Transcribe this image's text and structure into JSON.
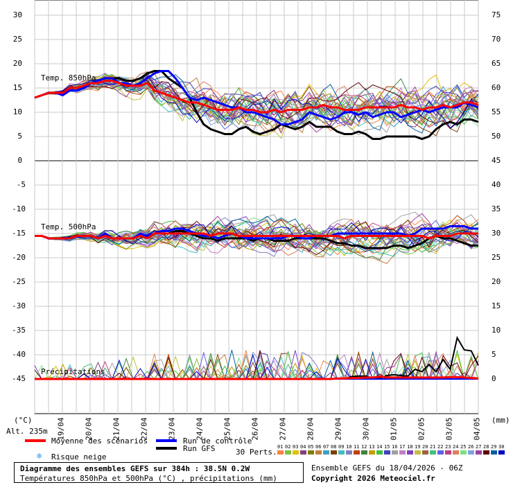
{
  "chart_data": {
    "type": "line",
    "title": "Diagramme des ensembles GEFS sur 384h : 38.5N 0.2W",
    "subtitle": "Températures 850hPa et 500hPa (°C) , précipitations (mm)",
    "source_info": "Ensemble GEFS du 18/04/2026 - 06Z",
    "copyright": "Copyright 2026 Meteociel.fr",
    "altitude": "Alt. 235m",
    "left_unit": "(°C)",
    "right_unit": "(mm)",
    "x_ticks": [
      "19/04",
      "20/04",
      "21/04",
      "22/04",
      "23/04",
      "24/04",
      "25/04",
      "26/04",
      "27/04",
      "28/04",
      "29/04",
      "30/04",
      "01/05",
      "02/05",
      "03/05",
      "04/05"
    ],
    "panels": [
      {
        "name": "Temp. 850hPa",
        "left_ticks": [
          "30",
          "25",
          "20",
          "15",
          "10",
          "5",
          "0"
        ],
        "right_ticks": [
          "75",
          "70",
          "65",
          "60",
          "55",
          "50",
          "45"
        ],
        "ylim": [
          0,
          30
        ]
      },
      {
        "name": "Temp. 500hPa",
        "left_ticks": [
          "-5",
          "-10",
          "-15",
          "-20",
          "-25",
          "-30",
          "-35",
          "-40",
          "-45"
        ],
        "right_ticks": [
          "40",
          "35",
          "30",
          "25",
          "20",
          "15",
          "10",
          "5",
          "0"
        ],
        "ylim": [
          -45,
          0
        ]
      },
      {
        "name": "Précipitations",
        "ylim": [
          0,
          25
        ]
      }
    ],
    "series": [
      {
        "name": "Moyenne des scénarios",
        "color": "#ff0000",
        "t850": [
          13,
          13.5,
          14,
          14,
          14,
          15,
          15,
          15.5,
          16,
          16,
          16.5,
          16.5,
          16,
          15.5,
          15.5,
          15.5,
          16,
          14.5,
          14,
          13.5,
          13,
          12.5,
          12,
          12,
          11.5,
          11,
          10.5,
          10.5,
          10.5,
          11,
          10.5,
          10.5,
          10,
          10,
          10.5,
          10,
          10.5,
          10.5,
          10.5,
          11,
          11,
          11.5,
          11,
          11,
          10.5,
          10.5,
          10.5,
          11,
          11,
          11,
          11,
          11,
          11.5,
          11,
          11,
          10.5,
          11,
          11,
          11.5,
          11,
          11.5,
          12,
          12,
          11.5
        ],
        "t500": [
          -15.5,
          -15.5,
          -16,
          -16,
          -16,
          -16,
          -15.5,
          -15.5,
          -15.5,
          -16,
          -15.5,
          -16,
          -16,
          -16,
          -16,
          -15.5,
          -16,
          -15,
          -15,
          -15,
          -15,
          -15,
          -15,
          -15,
          -15,
          -15.5,
          -15,
          -15,
          -15,
          -15.5,
          -15.5,
          -15.5,
          -15.5,
          -15.5,
          -15.5,
          -15.5,
          -15.5,
          -15.5,
          -15.5,
          -15.5,
          -15.5,
          -15.5,
          -15.5,
          -15.5,
          -16,
          -15.5,
          -15.5,
          -15.5,
          -15.5,
          -15.5,
          -15.5,
          -15.5,
          -15.5,
          -15.5,
          -15.5,
          -15.5,
          -16,
          -15.5,
          -15.5,
          -15.5,
          -15,
          -15,
          -15,
          -15
        ],
        "prcp": [
          0,
          0,
          0,
          0,
          0,
          0,
          0,
          0,
          0,
          0,
          0,
          0,
          0,
          0,
          0,
          0,
          0,
          0,
          0,
          0,
          0,
          0,
          0,
          0,
          0,
          0,
          0,
          0,
          0,
          0,
          0,
          0,
          0,
          0,
          0,
          0,
          0,
          0,
          0,
          0,
          0,
          0,
          0,
          0.1,
          0.1,
          0.2,
          0.2,
          0.3,
          0.3,
          0.5,
          0.3,
          0.3,
          0.3,
          0.3,
          0.3,
          0.3,
          0.3,
          0.3,
          0.3,
          0.4,
          0.4,
          0.3,
          0.2,
          0.1
        ]
      },
      {
        "name": "Run de contrôle",
        "color": "#0000ff",
        "t850": [
          13,
          13.5,
          14,
          14,
          13.5,
          14.5,
          14.5,
          15,
          16,
          16.5,
          17,
          17,
          16,
          16,
          15.5,
          16,
          17,
          18,
          18.5,
          18.5,
          17,
          15,
          13,
          12.5,
          13,
          12.5,
          12,
          11.5,
          11,
          11,
          10,
          10,
          9.5,
          9,
          8.5,
          7.5,
          7.5,
          8,
          8.5,
          10,
          9.5,
          9,
          8.5,
          9,
          10,
          10,
          9.5,
          10,
          9,
          9.5,
          10,
          10,
          9,
          9.5,
          10,
          10.5,
          10,
          10.5,
          11,
          11,
          11,
          12,
          11.5,
          11
        ],
        "t500": [
          -15.5,
          -15.5,
          -16,
          -16,
          -16,
          -16,
          -15.5,
          -15.5,
          -15.5,
          -16,
          -15,
          -16,
          -16,
          -16,
          -16,
          -15,
          -15.5,
          -15,
          -14.5,
          -14.5,
          -14,
          -14,
          -14.5,
          -15,
          -15.5,
          -15.5,
          -16,
          -15.5,
          -15,
          -15.5,
          -16,
          -16,
          -16,
          -16,
          -16,
          -16,
          -15.5,
          -15.5,
          -16,
          -16,
          -15.5,
          -15.5,
          -15.5,
          -15,
          -15,
          -15,
          -15,
          -15,
          -15,
          -15,
          -15,
          -15,
          -15,
          -15.5,
          -15,
          -14,
          -14,
          -14,
          -14,
          -13.5,
          -13.5,
          -13.5,
          -14,
          -14
        ],
        "prcp": [
          0,
          0,
          0,
          0,
          0,
          0,
          0,
          0,
          0,
          0,
          0,
          0,
          0,
          0,
          0,
          0,
          0,
          0,
          0,
          0,
          0,
          0,
          0,
          0,
          0,
          0,
          0,
          0,
          0,
          0,
          0,
          0,
          0,
          0,
          0,
          0,
          0,
          0,
          0,
          0,
          0,
          0,
          0,
          0,
          0,
          0,
          0,
          0,
          0,
          0,
          0,
          0,
          0,
          0,
          0,
          0,
          0,
          0,
          0,
          0,
          0,
          0,
          0,
          0
        ]
      },
      {
        "name": "Run GFS",
        "color": "#000000",
        "t850": [
          13,
          13.5,
          14,
          14,
          14,
          15,
          15,
          15.5,
          16,
          16.5,
          17,
          17,
          17,
          16.5,
          16.5,
          17,
          18,
          18.5,
          18.5,
          17,
          16,
          15,
          13,
          10,
          7.5,
          6.5,
          6,
          5.5,
          5.5,
          6.5,
          7,
          6,
          5.5,
          6,
          6.5,
          7.5,
          7,
          6.5,
          7,
          8,
          7,
          7,
          7,
          6,
          5.5,
          5.5,
          6,
          5.5,
          4.5,
          4.5,
          5,
          5,
          5,
          5,
          5,
          4.5,
          5,
          6.5,
          7.5,
          8,
          7.5,
          8.5,
          8.5,
          8
        ],
        "t500": [
          -15.5,
          -15.5,
          -16,
          -16,
          -16,
          -16,
          -15.5,
          -15.5,
          -15.5,
          -16,
          -15.5,
          -16,
          -16,
          -16,
          -16,
          -15.5,
          -16,
          -15,
          -15,
          -15,
          -14.5,
          -14.5,
          -15,
          -15.5,
          -16,
          -16,
          -16.5,
          -16,
          -16,
          -16,
          -16,
          -16.5,
          -16,
          -16,
          -16.5,
          -16.5,
          -16.5,
          -16,
          -16,
          -16,
          -16,
          -16,
          -16.5,
          -17,
          -17,
          -17.5,
          -17.5,
          -18,
          -18,
          -18,
          -18,
          -17.5,
          -17.5,
          -18,
          -17.5,
          -17,
          -16,
          -15.5,
          -16,
          -16,
          -16.5,
          -17,
          -17.5,
          -17.5
        ],
        "prcp": [
          0,
          0,
          0,
          0,
          0,
          0,
          0,
          0,
          0,
          0,
          0,
          0,
          0,
          0,
          0,
          0,
          0,
          0,
          0,
          0,
          0,
          0,
          0,
          0,
          0,
          0,
          0,
          0,
          0,
          0,
          0,
          0,
          0,
          0,
          0,
          0,
          0,
          0,
          0,
          0,
          0,
          0,
          0,
          0,
          0,
          0.5,
          0.6,
          0.6,
          0.2,
          0.1,
          0.7,
          0.9,
          0.7,
          0.6,
          2,
          1.5,
          3,
          1.5,
          4,
          2,
          8.5,
          6,
          5.8,
          2.8
        ]
      }
    ],
    "perturbations_label": "30 Perts.",
    "perturbations": [
      "01",
      "02",
      "03",
      "04",
      "05",
      "06",
      "07",
      "08",
      "09",
      "10",
      "11",
      "12",
      "13",
      "14",
      "15",
      "16",
      "17",
      "18",
      "19",
      "20",
      "21",
      "22",
      "23",
      "24",
      "25",
      "26",
      "27",
      "28",
      "29",
      "30"
    ],
    "perturbation_colors": [
      "#ff8040",
      "#80c040",
      "#e0c000",
      "#804080",
      "#808000",
      "#c08040",
      "#40a0c0",
      "#804000",
      "#40c0c0",
      "#8080c0",
      "#c04000",
      "#408040",
      "#c0a000",
      "#40c040",
      "#4040c0",
      "#a0a0a0",
      "#c080c0",
      "#8040c0",
      "#c0c040",
      "#a06040",
      "#40c080",
      "#6060e0",
      "#c04080",
      "#e08060",
      "#80e080",
      "#80a0e0",
      "#a040a0",
      "#600000",
      "#0060a0",
      "#0000c0"
    ],
    "legend": {
      "mean": "Moyenne des scénarios",
      "control": "Run de contrôle",
      "gfs": "Run GFS",
      "snow": "Risque neige"
    }
  }
}
